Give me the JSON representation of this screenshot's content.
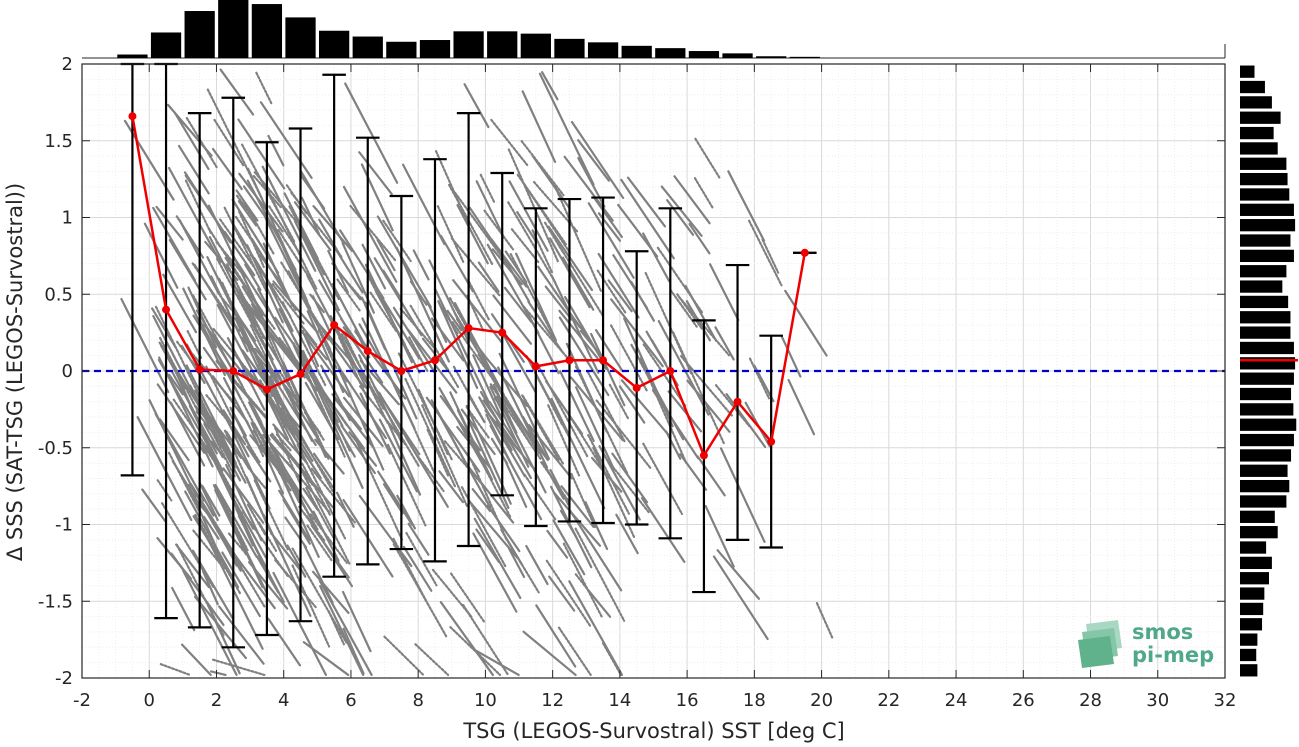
{
  "chart_data": {
    "type": "scatter",
    "xlabel": "TSG (LEGOS-Survostral) SST [deg C]",
    "ylabel": "Δ SSS (SAT-TSG (LEGOS-Survostral))",
    "xlim": [
      -2,
      32
    ],
    "ylim": [
      -2,
      2
    ],
    "xticks": [
      -2,
      0,
      2,
      4,
      6,
      8,
      10,
      12,
      14,
      16,
      18,
      20,
      22,
      24,
      26,
      28,
      30,
      32
    ],
    "yticks": [
      -2,
      -1.5,
      -1,
      -0.5,
      0,
      0.5,
      1,
      1.5,
      2
    ],
    "grid": true,
    "reference_line": {
      "y": 0,
      "style": "dashed",
      "color": "#0000cc"
    },
    "mean_series": {
      "color": "#ee0000",
      "x": [
        -0.5,
        0.5,
        1.5,
        2.5,
        3.5,
        4.5,
        5.5,
        6.5,
        7.5,
        8.5,
        9.5,
        10.5,
        11.5,
        12.5,
        13.5,
        14.5,
        15.5,
        16.5,
        17.5,
        18.5,
        19.5
      ],
      "y": [
        1.66,
        0.4,
        0.01,
        0.0,
        -0.12,
        -0.02,
        0.3,
        0.13,
        0.0,
        0.07,
        0.28,
        0.25,
        0.03,
        0.07,
        0.07,
        -0.11,
        0.0,
        -0.55,
        -0.2,
        -0.46,
        0.77
      ]
    },
    "error_bars": {
      "color": "#000000",
      "x": [
        -0.5,
        0.5,
        1.5,
        2.5,
        3.5,
        4.5,
        5.5,
        6.5,
        7.5,
        8.5,
        9.5,
        10.5,
        11.5,
        12.5,
        13.5,
        14.5,
        15.5,
        16.5,
        17.5,
        18.5,
        19.5
      ],
      "lower": [
        -0.68,
        -1.61,
        -1.67,
        -1.8,
        -1.72,
        -1.63,
        -1.34,
        -1.26,
        -1.16,
        -1.24,
        -1.14,
        -0.81,
        -1.01,
        -0.98,
        -0.99,
        -1.0,
        -1.09,
        -1.44,
        -1.1,
        -1.15,
        0.77
      ],
      "upper": [
        2.0,
        2.0,
        1.68,
        1.78,
        1.49,
        1.58,
        1.93,
        1.52,
        1.14,
        1.38,
        1.68,
        1.29,
        1.06,
        1.12,
        1.13,
        0.78,
        1.06,
        0.33,
        0.69,
        0.23,
        0.77
      ]
    },
    "scatter_color": "#808080",
    "histogram_x": {
      "x": [
        -0.5,
        0.5,
        1.5,
        2.5,
        3.5,
        4.5,
        5.5,
        6.5,
        7.5,
        8.5,
        9.5,
        10.5,
        11.5,
        12.5,
        13.5,
        14.5,
        15.5,
        16.5,
        17.5,
        18.5,
        19.5
      ],
      "counts": [
        0.06,
        0.44,
        0.81,
        1.0,
        0.93,
        0.7,
        0.47,
        0.37,
        0.28,
        0.31,
        0.46,
        0.46,
        0.42,
        0.33,
        0.27,
        0.21,
        0.17,
        0.12,
        0.08,
        0.03,
        0.02
      ]
    },
    "histogram_y": {
      "y_centers": [
        1.95,
        1.85,
        1.75,
        1.65,
        1.55,
        1.45,
        1.35,
        1.25,
        1.15,
        1.05,
        0.95,
        0.85,
        0.75,
        0.65,
        0.55,
        0.45,
        0.35,
        0.25,
        0.15,
        0.05,
        -0.05,
        -0.15,
        -0.25,
        -0.35,
        -0.45,
        -0.55,
        -0.65,
        -0.75,
        -0.85,
        -0.95,
        -1.05,
        -1.15,
        -1.25,
        -1.35,
        -1.45,
        -1.55,
        -1.65,
        -1.75,
        -1.85,
        -1.95
      ],
      "counts": [
        0.25,
        0.43,
        0.55,
        0.7,
        0.58,
        0.65,
        0.8,
        0.82,
        0.85,
        0.93,
        0.95,
        0.87,
        0.93,
        0.8,
        0.73,
        0.83,
        0.87,
        0.87,
        0.93,
        0.95,
        0.93,
        0.88,
        0.92,
        0.97,
        0.93,
        0.88,
        0.82,
        0.85,
        0.8,
        0.6,
        0.65,
        0.45,
        0.55,
        0.5,
        0.42,
        0.4,
        0.38,
        0.3,
        0.28,
        0.3
      ]
    },
    "histogram_y_mean_line": {
      "y": 0.07,
      "color": "#ee0000"
    }
  },
  "logo": {
    "line1": "smos",
    "line2": "pi-mep",
    "color": "#4fa88a"
  }
}
